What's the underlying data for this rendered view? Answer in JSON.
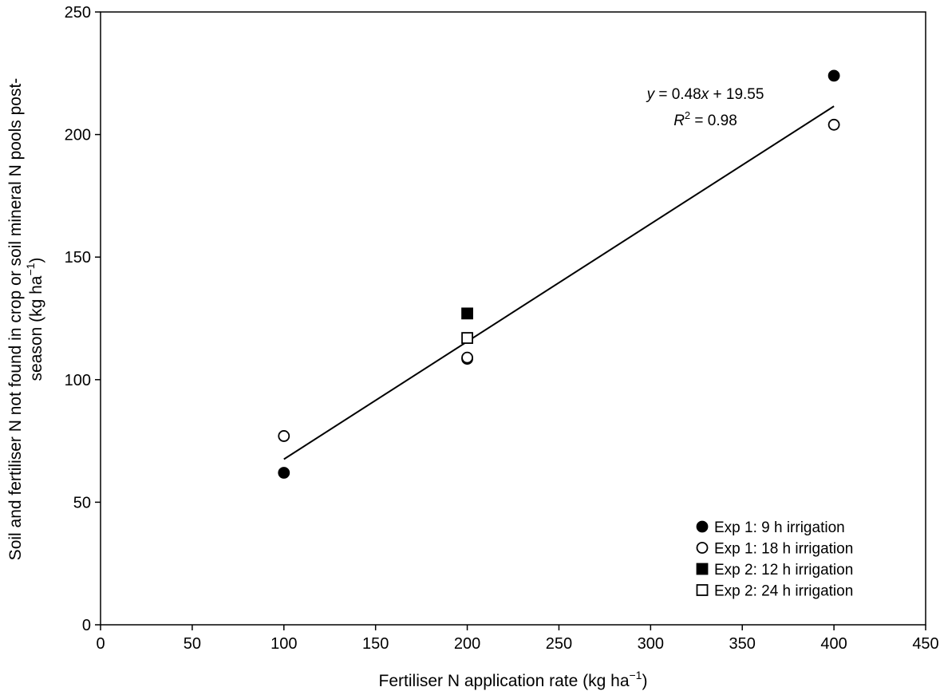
{
  "chart_data": {
    "type": "scatter",
    "x_axis": {
      "label": "Fertiliser N application rate (kg ha",
      "label_sup": "−1",
      "label_end": ")",
      "range": [
        0,
        450
      ],
      "ticks": [
        0,
        50,
        100,
        150,
        200,
        250,
        300,
        350,
        400,
        450
      ]
    },
    "y_axis": {
      "label_line1": "Soil and fertiliser N not found in crop or soil mineral N pools post-",
      "label_line2": "season (kg ha",
      "label_sup": "−1",
      "label_end": ")",
      "range": [
        0,
        250
      ],
      "ticks": [
        0,
        50,
        100,
        150,
        200,
        250
      ]
    },
    "series": [
      {
        "name": "Exp 1: 9 h irrigation",
        "marker": "circle",
        "filled": true,
        "points": [
          [
            100,
            62
          ],
          [
            200,
            108.5
          ],
          [
            400,
            224
          ]
        ]
      },
      {
        "name": "Exp 1: 18 h irrigation",
        "marker": "circle",
        "filled": false,
        "points": [
          [
            100,
            77
          ],
          [
            200,
            109
          ],
          [
            400,
            204
          ]
        ]
      },
      {
        "name": "Exp 2: 12 h irrigation",
        "marker": "square",
        "filled": true,
        "points": [
          [
            200,
            127
          ]
        ]
      },
      {
        "name": "Exp 2: 24 h irrigation",
        "marker": "square",
        "filled": false,
        "points": [
          [
            200,
            117
          ]
        ]
      }
    ],
    "trendline": {
      "slope": 0.48,
      "intercept": 19.55,
      "x_from": 100,
      "x_to": 400
    },
    "annotation": {
      "eq_y": "y",
      "eq_mid": " = 0.48",
      "eq_x": "x",
      "eq_rest": " + 19.55",
      "r2_r": "R",
      "r2_sup": "2",
      "r2_rest": " = 0.98"
    },
    "legend_position": "bottom-right",
    "grid": false
  }
}
